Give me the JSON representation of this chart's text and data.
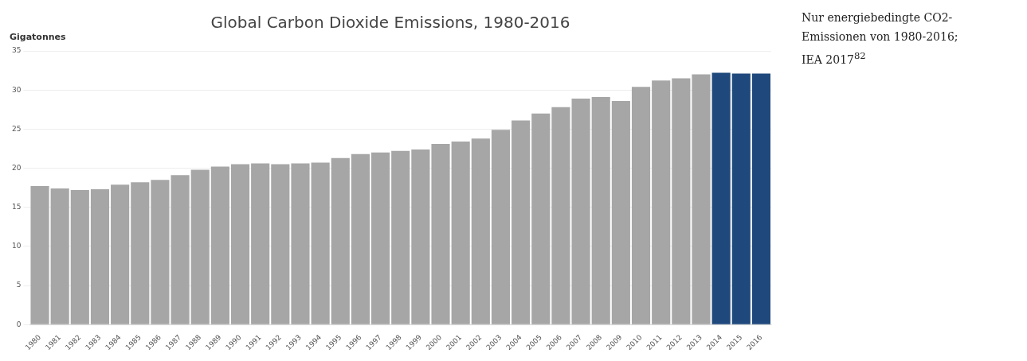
{
  "chart_data": {
    "type": "bar",
    "title": "Global Carbon Dioxide Emissions, 1980-2016",
    "ylabel": "Gigatonnes",
    "categories": [
      "1980",
      "1981",
      "1982",
      "1983",
      "1984",
      "1985",
      "1986",
      "1987",
      "1988",
      "1989",
      "1990",
      "1991",
      "1992",
      "1993",
      "1994",
      "1995",
      "1996",
      "1997",
      "1998",
      "1999",
      "2000",
      "2001",
      "2002",
      "2003",
      "2004",
      "2005",
      "2006",
      "2007",
      "2008",
      "2009",
      "2010",
      "2011",
      "2012",
      "2013",
      "2014",
      "2015",
      "2016"
    ],
    "values": [
      17.7,
      17.4,
      17.2,
      17.3,
      17.9,
      18.2,
      18.5,
      19.1,
      19.8,
      20.2,
      20.5,
      20.6,
      20.5,
      20.6,
      20.7,
      21.3,
      21.8,
      22.0,
      22.2,
      22.4,
      23.1,
      23.4,
      23.8,
      24.9,
      26.1,
      27.0,
      27.8,
      28.9,
      29.1,
      28.6,
      30.4,
      31.2,
      31.5,
      32.0,
      32.2,
      32.1,
      32.1
    ],
    "colors": [
      "#a6a6a6",
      "#a6a6a6",
      "#a6a6a6",
      "#a6a6a6",
      "#a6a6a6",
      "#a6a6a6",
      "#a6a6a6",
      "#a6a6a6",
      "#a6a6a6",
      "#a6a6a6",
      "#a6a6a6",
      "#a6a6a6",
      "#a6a6a6",
      "#a6a6a6",
      "#a6a6a6",
      "#a6a6a6",
      "#a6a6a6",
      "#a6a6a6",
      "#a6a6a6",
      "#a6a6a6",
      "#a6a6a6",
      "#a6a6a6",
      "#a6a6a6",
      "#a6a6a6",
      "#a6a6a6",
      "#a6a6a6",
      "#a6a6a6",
      "#a6a6a6",
      "#a6a6a6",
      "#a6a6a6",
      "#a6a6a6",
      "#a6a6a6",
      "#a6a6a6",
      "#a6a6a6",
      "#1f497d",
      "#1f497d",
      "#1f497d"
    ],
    "ylim": [
      0,
      35
    ],
    "yticks": [
      0,
      5,
      10,
      15,
      20,
      25,
      30,
      35
    ],
    "grid": "y",
    "legend": false,
    "annotations": [
      "Nur energiebedingte CO2-Emissionen von 1980-2016; IEA 2017$^{82}$"
    ]
  }
}
